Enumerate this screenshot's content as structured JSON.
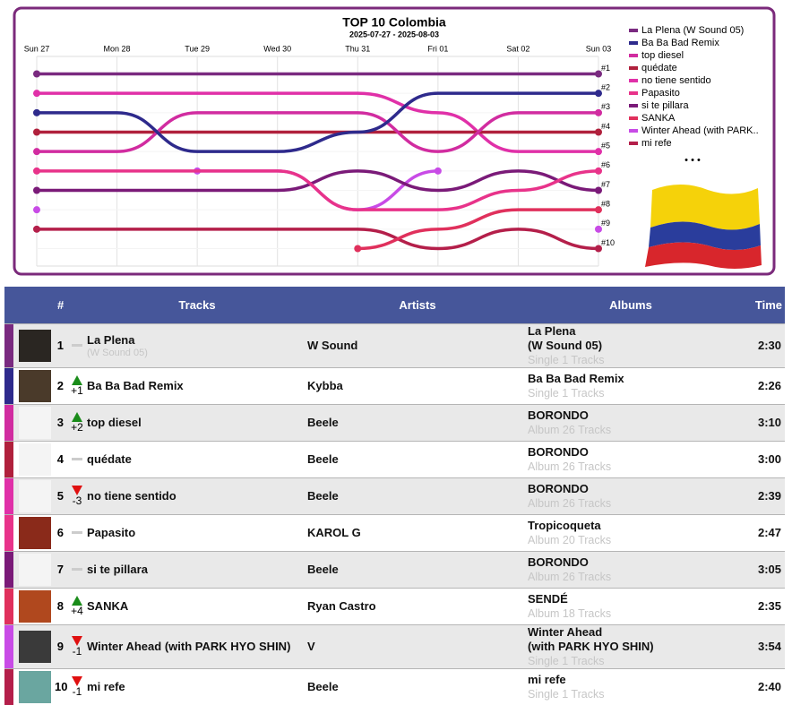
{
  "chart_data": {
    "type": "bump",
    "title": "TOP 10 Colombia",
    "subtitle": "2025-07-27 - 2025-08-03",
    "categories": [
      "Sun 27",
      "Mon 28",
      "Tue 29",
      "Wed 30",
      "Thu 31",
      "Fri 01",
      "Sat 02",
      "Sun 03"
    ],
    "ylim": [
      10.9,
      0.1
    ],
    "yticks": [
      {
        "value": 1,
        "label": "#1"
      },
      {
        "value": 2,
        "label": "#2"
      },
      {
        "value": 3,
        "label": "#3"
      },
      {
        "value": 4,
        "label": "#4"
      },
      {
        "value": 5,
        "label": "#5"
      },
      {
        "value": 6,
        "label": "#6"
      },
      {
        "value": 7,
        "label": "#7"
      },
      {
        "value": 8,
        "label": "#8"
      },
      {
        "value": 9,
        "label": "#9"
      },
      {
        "value": 10,
        "label": "#10"
      }
    ],
    "grid": true,
    "legend": "right",
    "series": [
      {
        "name": "La Plena (W Sound 05)",
        "color": "#7a2a80",
        "values": [
          1,
          1,
          1,
          1,
          1,
          1,
          1,
          1
        ]
      },
      {
        "name": "Ba Ba Bad Remix",
        "color": "#2e2a8c",
        "values": [
          3,
          3,
          5,
          5,
          4,
          2,
          2,
          2
        ]
      },
      {
        "name": "top diesel",
        "color": "#d12ca0",
        "values": [
          5,
          5,
          3,
          3,
          3,
          5,
          3,
          3
        ]
      },
      {
        "name": "quédate",
        "color": "#b0203c",
        "values": [
          4,
          4,
          4,
          4,
          4,
          4,
          4,
          4
        ]
      },
      {
        "name": "no tiene sentido",
        "color": "#e030a8",
        "values": [
          2,
          2,
          2,
          2,
          2,
          3,
          5,
          5
        ]
      },
      {
        "name": "Papasito",
        "color": "#e8338a",
        "values": [
          6,
          6,
          6,
          6,
          8,
          8,
          7,
          6
        ]
      },
      {
        "name": "si te pillara",
        "color": "#7a1a78",
        "values": [
          7,
          7,
          7,
          7,
          6,
          7,
          6,
          7
        ]
      },
      {
        "name": "SANKA",
        "color": "#e0305c",
        "values": [
          null,
          null,
          null,
          null,
          10,
          9,
          8,
          8
        ]
      },
      {
        "name": "Winter Ahead (with PARK..",
        "color": "#c84be6",
        "values": [
          8,
          null,
          6,
          6,
          8,
          6,
          null,
          9
        ]
      },
      {
        "name": "mi refe",
        "color": "#b41f4a",
        "values": [
          9,
          9,
          9,
          9,
          9,
          10,
          9,
          10
        ]
      }
    ]
  },
  "legend_more": "• • •",
  "table": {
    "header": [
      "#",
      "Tracks",
      "Artists",
      "Albums",
      "Time"
    ],
    "rows": [
      {
        "rank": "1",
        "trend": "same",
        "track": "La Plena",
        "track_sub": "(W Sound 05)",
        "artist": "W Sound",
        "album": "La Plena\n(W Sound 05)",
        "album_info": "Single 1 Tracks",
        "time": "2:30"
      },
      {
        "rank": "2",
        "trend": "up",
        "change": "+1",
        "track": "Ba Ba Bad Remix",
        "artist": "Kybba",
        "album": "Ba Ba Bad Remix",
        "album_info": "Single 1 Tracks",
        "time": "2:26"
      },
      {
        "rank": "3",
        "trend": "up",
        "change": "+2",
        "track": "top diesel",
        "artist": "Beele",
        "album": "BORONDO",
        "album_info": "Album 26 Tracks",
        "time": "3:10"
      },
      {
        "rank": "4",
        "trend": "same",
        "track": "quédate",
        "artist": "Beele",
        "album": "BORONDO",
        "album_info": "Album 26 Tracks",
        "time": "3:00"
      },
      {
        "rank": "5",
        "trend": "down",
        "change": "-3",
        "track": "no tiene sentido",
        "artist": "Beele",
        "album": "BORONDO",
        "album_info": "Album 26 Tracks",
        "time": "2:39"
      },
      {
        "rank": "6",
        "trend": "same",
        "track": "Papasito",
        "artist": "KAROL G",
        "album": "Tropicoqueta",
        "album_info": "Album 20 Tracks",
        "time": "2:47"
      },
      {
        "rank": "7",
        "trend": "same",
        "track": "si te pillara",
        "artist": "Beele",
        "album": "BORONDO",
        "album_info": "Album 26 Tracks",
        "time": "3:05"
      },
      {
        "rank": "8",
        "trend": "up",
        "change": "+4",
        "track": "SANKA",
        "artist": "Ryan Castro",
        "album": "SENDÉ",
        "album_info": "Album 18 Tracks",
        "time": "2:35"
      },
      {
        "rank": "9",
        "trend": "down",
        "change": "-1",
        "track": "Winter Ahead (with PARK HYO SHIN)",
        "artist": "V",
        "album": "Winter Ahead\n(with PARK HYO SHIN)",
        "album_info": "Single 1 Tracks",
        "time": "3:54"
      },
      {
        "rank": "10",
        "trend": "down",
        "change": "-1",
        "track": "mi refe",
        "artist": "Beele",
        "album": "mi refe",
        "album_info": "Single 1 Tracks",
        "time": "2:40"
      }
    ]
  }
}
